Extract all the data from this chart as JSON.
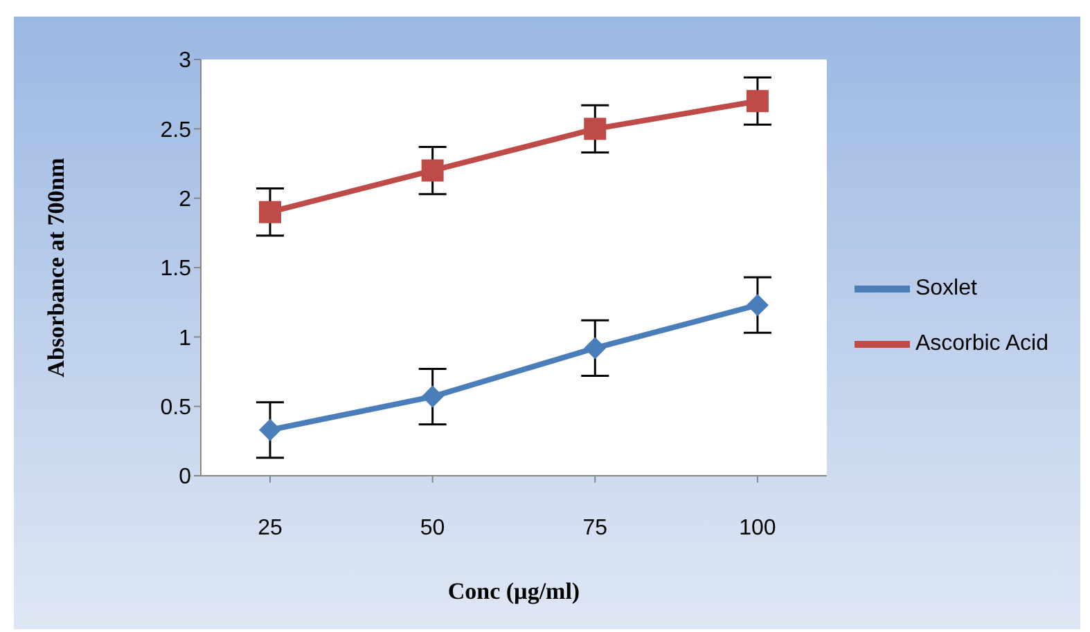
{
  "chart_data": {
    "type": "line",
    "xlabel": "Conc (µg/ml)",
    "ylabel": "Absorbance at 700nm",
    "categories": [
      "25",
      "50",
      "75",
      "100"
    ],
    "series": [
      {
        "name": "Soxlet",
        "color": "#4a7ebb",
        "marker": "diamond",
        "values": [
          0.33,
          0.57,
          0.92,
          1.23
        ],
        "errors": [
          0.2,
          0.2,
          0.2,
          0.2
        ]
      },
      {
        "name": "Ascorbic Acid",
        "color": "#be4b48",
        "marker": "square",
        "values": [
          1.9,
          2.2,
          2.5,
          2.7
        ],
        "errors": [
          0.17,
          0.17,
          0.17,
          0.17
        ]
      }
    ],
    "ylim": [
      0,
      3
    ],
    "yticks": [
      0,
      0.5,
      1,
      1.5,
      2,
      2.5,
      3
    ],
    "grid": false,
    "legend": "right"
  }
}
